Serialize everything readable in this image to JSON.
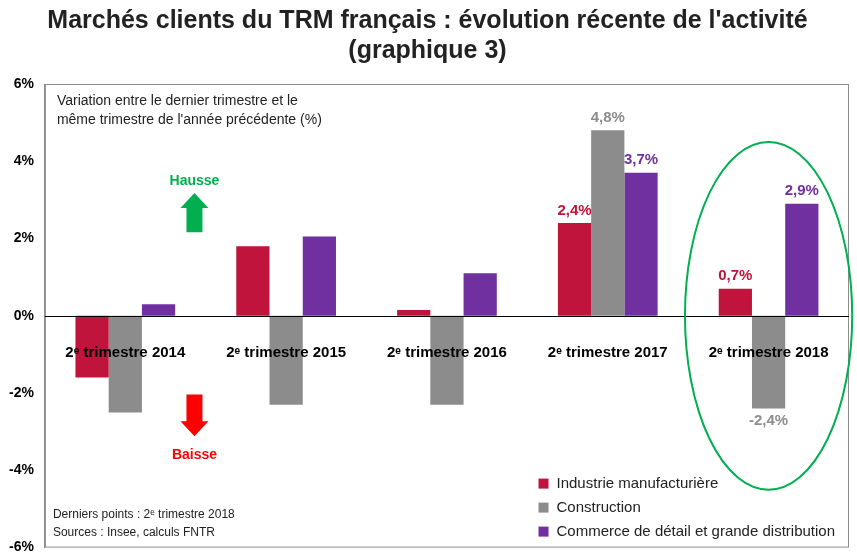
{
  "chart_data": {
    "type": "bar",
    "title": [
      "Marchés clients du TRM français : évolution récente de l'activité",
      "(graphique 3)"
    ],
    "subtitle": [
      "Variation entre le dernier trimestre et le",
      "même trimestre de l'année précédente (%)"
    ],
    "annotations": [
      "Hausse",
      "Baisse"
    ],
    "notes": [
      "Derniers points : 2ᵉ trimestre 2018",
      "Sources : Insee, calculs FNTR"
    ],
    "categories": [
      "2ᵉ trimestre 2014",
      "2ᵉ trimestre 2015",
      "2ᵉ trimestre 2016",
      "2ᵉ trimestre 2017",
      "2ᵉ trimestre 2018"
    ],
    "series": [
      {
        "name": "Industrie manufacturière",
        "color": "#C0143C",
        "values": [
          -1.6,
          1.8,
          0.15,
          2.4,
          0.7
        ],
        "value_labels": [
          null,
          null,
          null,
          "2,4%",
          "0,7%"
        ]
      },
      {
        "name": "Construction",
        "color": "#8C8C8C",
        "values": [
          -2.5,
          -2.3,
          -2.3,
          4.8,
          -2.4
        ],
        "value_labels": [
          null,
          null,
          null,
          "4,8%",
          "-2,4%"
        ]
      },
      {
        "name": "Commerce de détail et grande distribution",
        "color": "#7030A0",
        "values": [
          0.3,
          2.05,
          1.1,
          3.7,
          2.9
        ],
        "value_labels": [
          null,
          null,
          null,
          "3,7%",
          "2,9%"
        ]
      }
    ],
    "ylim": [
      -6,
      6
    ],
    "yticks": [
      {
        "value": -6,
        "label": "-6%"
      },
      {
        "value": -4,
        "label": "-4%"
      },
      {
        "value": -2,
        "label": "-2%"
      },
      {
        "value": 0,
        "label": "0%"
      },
      {
        "value": 2,
        "label": "2%"
      },
      {
        "value": 4,
        "label": "4%"
      },
      {
        "value": 6,
        "label": "6%"
      }
    ],
    "grid": false,
    "legend": "lower right",
    "data_labels": true
  }
}
